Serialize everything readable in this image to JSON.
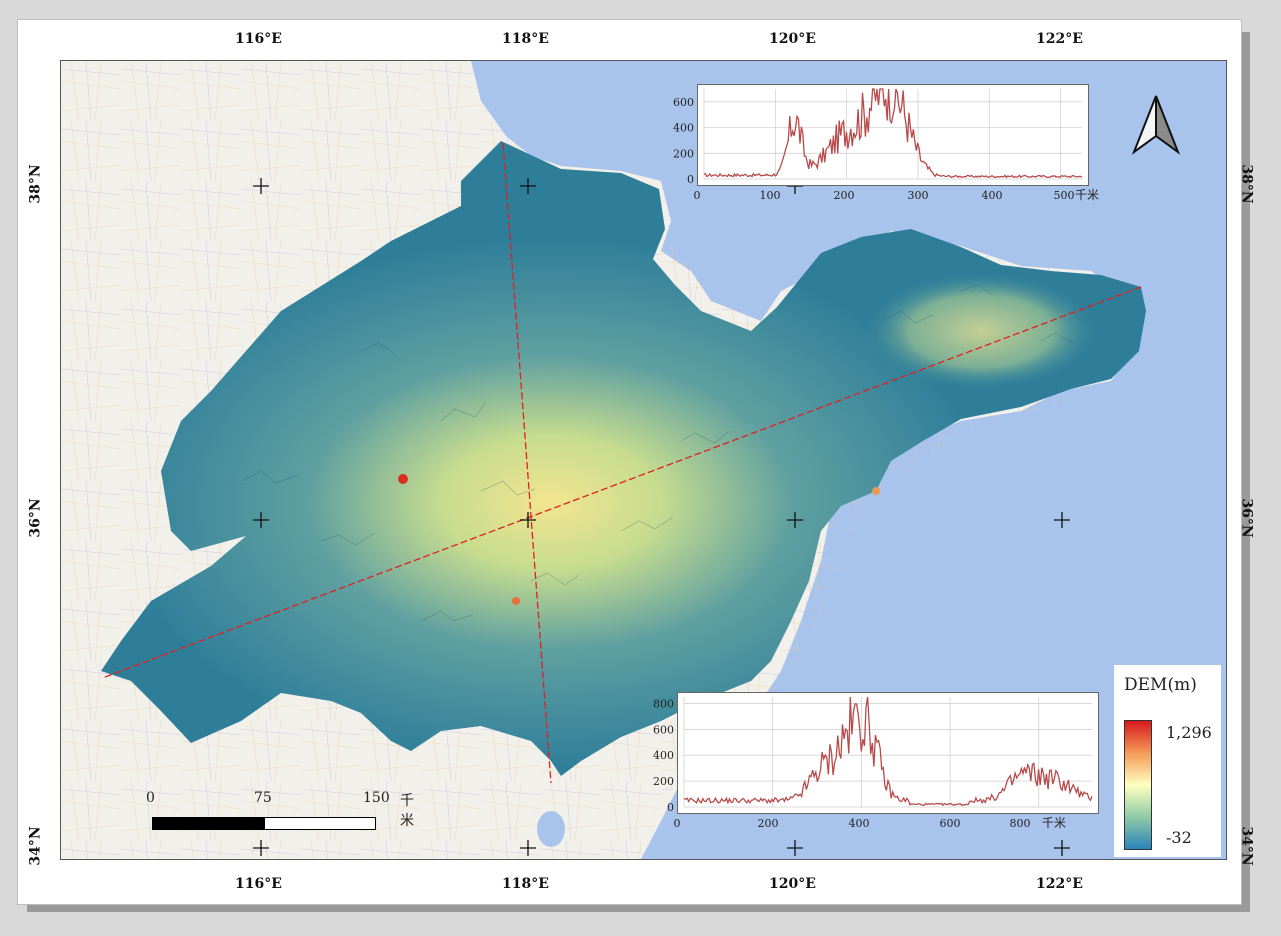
{
  "axes": {
    "lon_labels": [
      "116°E",
      "118°E",
      "120°E",
      "122°E"
    ],
    "lat_labels": [
      "38°N",
      "36°N",
      "34°N"
    ]
  },
  "legend": {
    "title": "DEM(m)",
    "max_label": "1,296",
    "min_label": "-32",
    "ramp_colors": [
      "#d7191c",
      "#f49a58",
      "#ffffbf",
      "#8fcba7",
      "#2b83ba"
    ]
  },
  "scale_bar": {
    "labels": [
      "0",
      "75",
      "150"
    ],
    "unit": "千米"
  },
  "profiles": {
    "top": {
      "y_ticks": [
        "0",
        "200",
        "400",
        "600"
      ],
      "x_ticks": [
        "0",
        "100",
        "200",
        "300",
        "400",
        "500"
      ],
      "x_unit": "千米",
      "xlim": [
        0,
        530
      ],
      "ylim": [
        0,
        700
      ],
      "line_color": "#b84a4a"
    },
    "bottom": {
      "y_ticks": [
        "0",
        "200",
        "400",
        "600",
        "800"
      ],
      "x_ticks": [
        "0",
        "200",
        "400",
        "600",
        "800"
      ],
      "x_unit": "千米",
      "xlim": [
        0,
        920
      ],
      "ylim": [
        0,
        850
      ],
      "line_color": "#b84a4a"
    }
  },
  "colors": {
    "sea": "#a9c4ec",
    "land_outside": "#f2f0ea",
    "profile_line": "#e02020"
  },
  "icons": {
    "north_arrow": "north-arrow-icon"
  }
}
